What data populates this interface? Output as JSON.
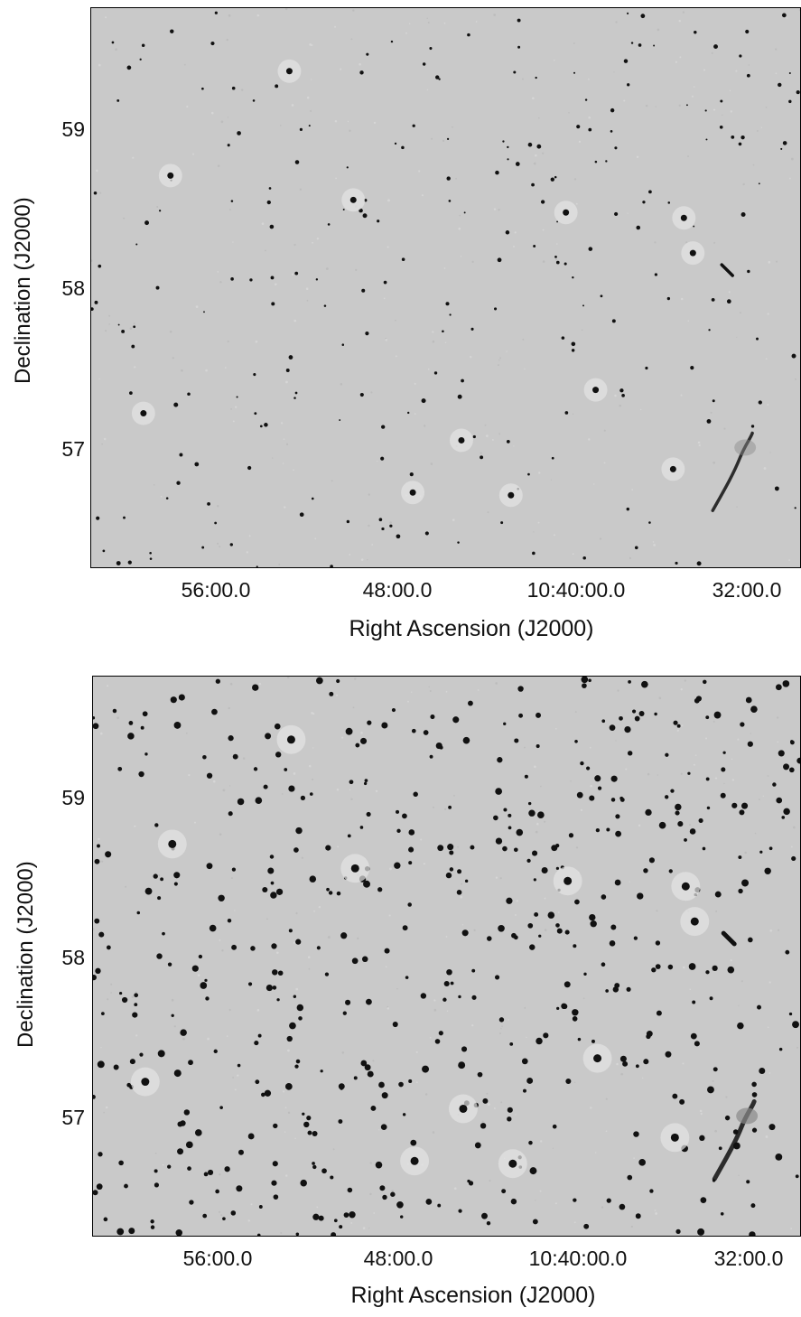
{
  "panels": [
    {
      "id": "top",
      "ylabel": "Declination (J2000)",
      "xlabel": "Right Ascension (J2000)",
      "yticks": [
        "59",
        "58",
        "57"
      ],
      "xticks": [
        "56:00.0",
        "48:00.0",
        "10:40:00.0",
        "32:00.0"
      ],
      "background": "#c9c9c9"
    },
    {
      "id": "bottom",
      "ylabel": "Declination (J2000)",
      "xlabel": "Right Ascension (J2000)",
      "yticks": [
        "59",
        "58",
        "57"
      ],
      "xticks": [
        "56:00.0",
        "48:00.0",
        "10:40:00.0",
        "32:00.0"
      ],
      "background": "#c9c9c9"
    }
  ],
  "colors": {
    "source": "#111111",
    "frame": "#000000",
    "sky": "#c9c9c9"
  }
}
